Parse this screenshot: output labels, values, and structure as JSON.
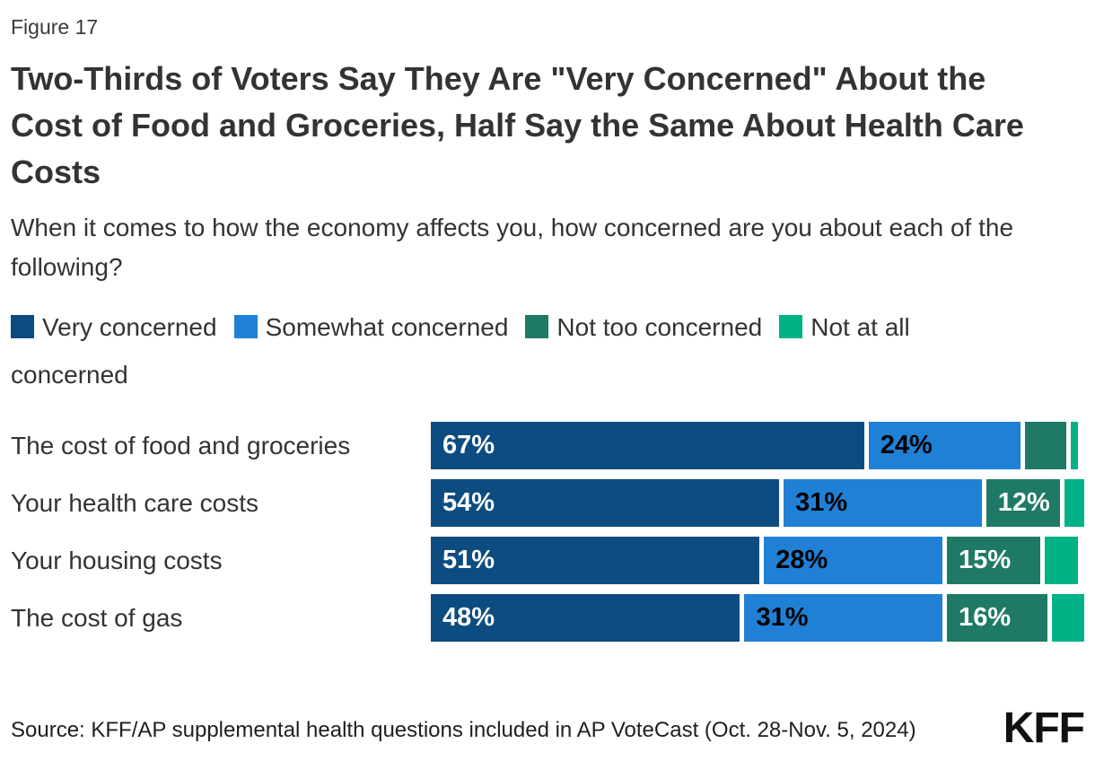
{
  "figure_label": "Figure 17",
  "title": "Two-Thirds of Voters Say They Are \"Very Concerned\" About the Cost of Food and Groceries, Half Say the Same About Health Care Costs",
  "subtitle": "When it comes to how the economy affects you, how concerned are you about each of the following?",
  "source": "Source: KFF/AP supplemental health questions included in AP VoteCast (Oct. 28-Nov. 5, 2024)",
  "logo": "KFF",
  "colors": {
    "very_concerned": "#0d4c80",
    "somewhat_concerned": "#2080d6",
    "not_too_concerned": "#1e7a64",
    "not_at_all_concerned": "#00b286",
    "title_text": "#333333",
    "background": "#ffffff"
  },
  "chart_data": {
    "type": "bar",
    "orientation": "horizontal-stacked",
    "title": "Two-Thirds of Voters Say They Are \"Very Concerned\" About the Cost of Food and Groceries, Half Say the Same About Health Care Costs",
    "xlabel": "",
    "ylabel": "",
    "xlim": [
      0,
      100
    ],
    "grid": false,
    "legend_position": "top",
    "categories": [
      "The cost of food and groceries",
      "Your health care costs",
      "Your housing costs",
      "The cost of gas"
    ],
    "series": [
      {
        "name": "Very concerned",
        "color": "#0d4c80",
        "label_color": "#ffffff",
        "values": [
          67,
          54,
          51,
          48
        ],
        "labels": [
          "67%",
          "54%",
          "51%",
          "48%"
        ]
      },
      {
        "name": "Somewhat concerned",
        "color": "#2080d6",
        "label_color": "#000000",
        "values": [
          24,
          31,
          28,
          31
        ],
        "labels": [
          "24%",
          "31%",
          "28%",
          "31%"
        ]
      },
      {
        "name": "Not too concerned",
        "color": "#1e7a64",
        "label_color": "#ffffff",
        "values": [
          7,
          12,
          15,
          16
        ],
        "labels": [
          "",
          "12%",
          "15%",
          "16%"
        ]
      },
      {
        "name": "Not at all concerned",
        "color": "#00b286",
        "label_color": "#ffffff",
        "values": [
          1,
          3,
          5,
          5
        ],
        "labels": [
          "",
          "",
          "",
          ""
        ]
      }
    ]
  }
}
